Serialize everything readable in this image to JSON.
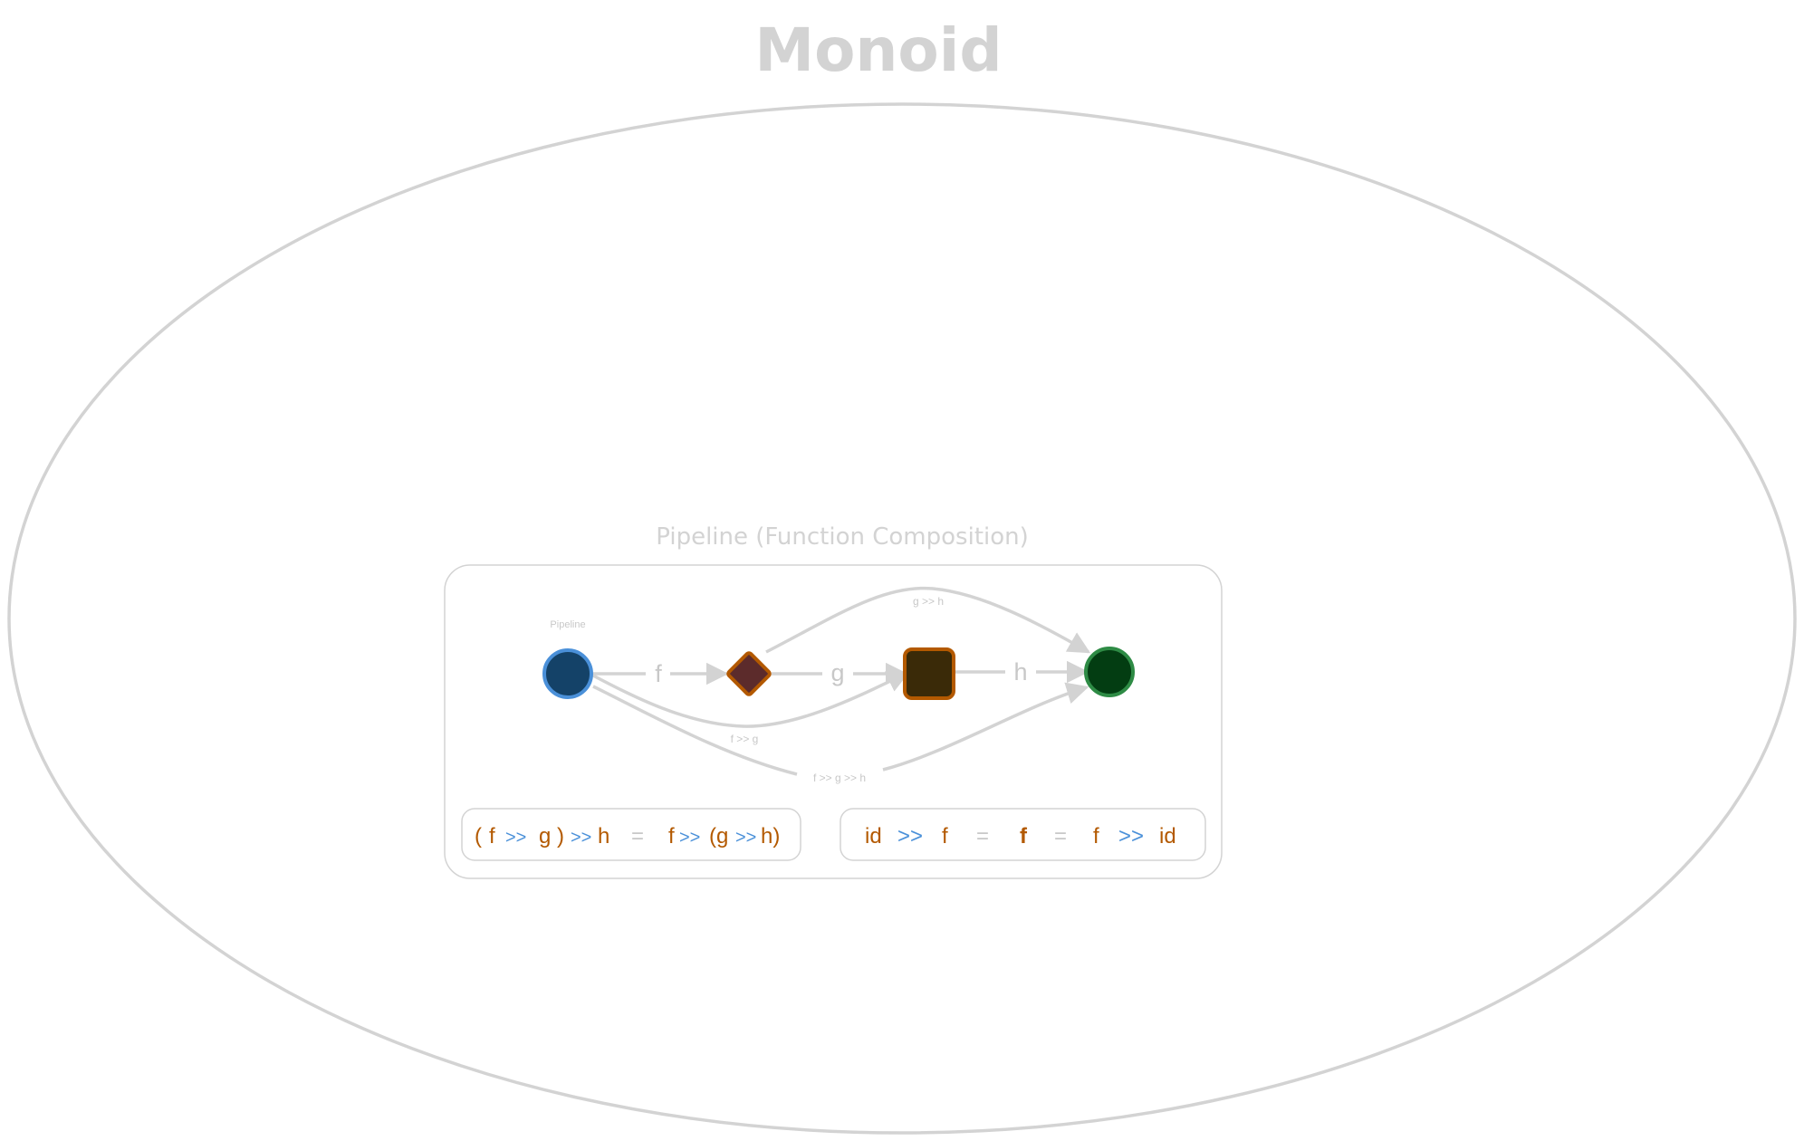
{
  "diagram": {
    "title": "Monoid",
    "panel": {
      "title": "Pipeline (Function Composition)",
      "node_caption": "Pipeline"
    },
    "nodes": [
      {
        "id": "start",
        "shape": "circle",
        "fill": "#144268",
        "stroke": "#4a90d9"
      },
      {
        "id": "mid1",
        "shape": "diamond",
        "fill": "#5c2b2b",
        "stroke": "#b35900"
      },
      {
        "id": "mid2",
        "shape": "rounded-square",
        "fill": "#3a2a08",
        "stroke": "#b35900"
      },
      {
        "id": "end",
        "shape": "circle",
        "fill": "#033d12",
        "stroke": "#2e8b45"
      }
    ],
    "edges": [
      {
        "from": "start",
        "to": "mid1",
        "label": "f"
      },
      {
        "from": "mid1",
        "to": "mid2",
        "label": "g"
      },
      {
        "from": "mid2",
        "to": "end",
        "label": "h"
      },
      {
        "from": "mid1",
        "to": "end",
        "label": "g >> h"
      },
      {
        "from": "start",
        "to": "mid2",
        "label": "f >> g"
      },
      {
        "from": "start",
        "to": "end",
        "label": "f >> g >> h"
      }
    ],
    "laws": {
      "associativity": {
        "lp": "(",
        "f": "f",
        "op1": ">>",
        "g": "g",
        "rp": ")",
        "op2": ">>",
        "h": "h",
        "eq": "=",
        "f2": "f",
        "op3": ">>",
        "lp2": "(g",
        "op4": ">>",
        "h2": "h)"
      },
      "identity": {
        "id1": "id",
        "op1": ">>",
        "f1": "f",
        "eq1": "=",
        "f_mid": "f",
        "eq2": "=",
        "f2": "f",
        "op2": ">>",
        "id2": "id"
      }
    },
    "colors": {
      "outline": "#d3d3d3",
      "operand": "#b35900",
      "operator": "#4a90d9",
      "muted": "#c8c8c8"
    }
  }
}
